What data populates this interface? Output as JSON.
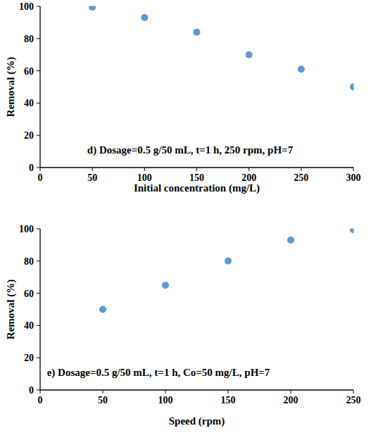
{
  "chart_data": [
    {
      "type": "scatter",
      "x_label": "Initial concentration (mg/L)",
      "y_label": "Removal (%)",
      "annotations": [
        "d) Dosage=0.5 g/50 mL, t=1 h, 250 rpm, pH=7"
      ],
      "x": [
        50,
        100,
        150,
        200,
        250,
        300
      ],
      "values": [
        99.5,
        93,
        84,
        70,
        61,
        50
      ],
      "color": "#5b9bd5",
      "marker": "circle",
      "xlim": [
        0,
        300
      ],
      "xticks": [
        0,
        50,
        100,
        150,
        200,
        250,
        300
      ],
      "ylim": [
        0,
        100
      ],
      "yticks": [
        0,
        20,
        40,
        60,
        80,
        100
      ],
      "grid": false
    },
    {
      "type": "scatter",
      "x_label": "Speed (rpm)",
      "y_label": "Removal (%)",
      "annotations": [
        "e) Dosage=0.5 g/50 mL, t=1 h, Co=50 mg/L, pH=7"
      ],
      "x": [
        50,
        100,
        150,
        200,
        250
      ],
      "values": [
        50,
        65,
        80,
        93,
        99.5
      ],
      "color": "#5b9bd5",
      "marker": "circle",
      "xlim": [
        0,
        250
      ],
      "xticks": [
        0,
        50,
        100,
        150,
        200,
        250
      ],
      "ylim": [
        0,
        100
      ],
      "yticks": [
        0,
        20,
        40,
        60,
        80,
        100
      ],
      "grid": false
    }
  ]
}
